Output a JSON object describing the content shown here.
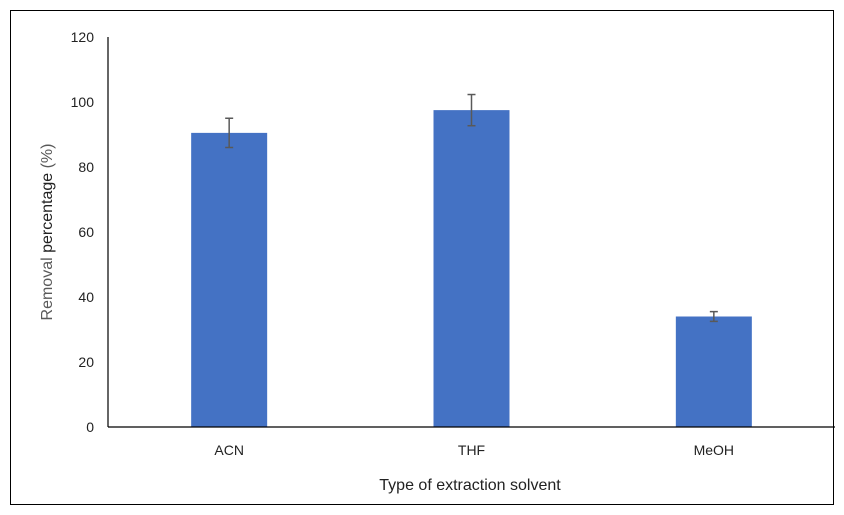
{
  "chart_data": {
    "type": "bar",
    "title": "",
    "xlabel": "Type of extraction solvent",
    "ylabel_part1": "Removal ",
    "ylabel_part2": "percentage",
    "ylabel_part3": " (%)",
    "categories": [
      "ACN",
      "THF",
      "MeOH"
    ],
    "values": [
      90.5,
      97.5,
      34
    ],
    "errors": [
      4.5,
      4.8,
      1.5
    ],
    "ylim": [
      0,
      120
    ],
    "yticks": [
      "0",
      "20",
      "40",
      "60",
      "80",
      "100",
      "120"
    ],
    "bar_color": "#4472c4",
    "error_color": "#595959",
    "grid": false,
    "legend": "none"
  }
}
